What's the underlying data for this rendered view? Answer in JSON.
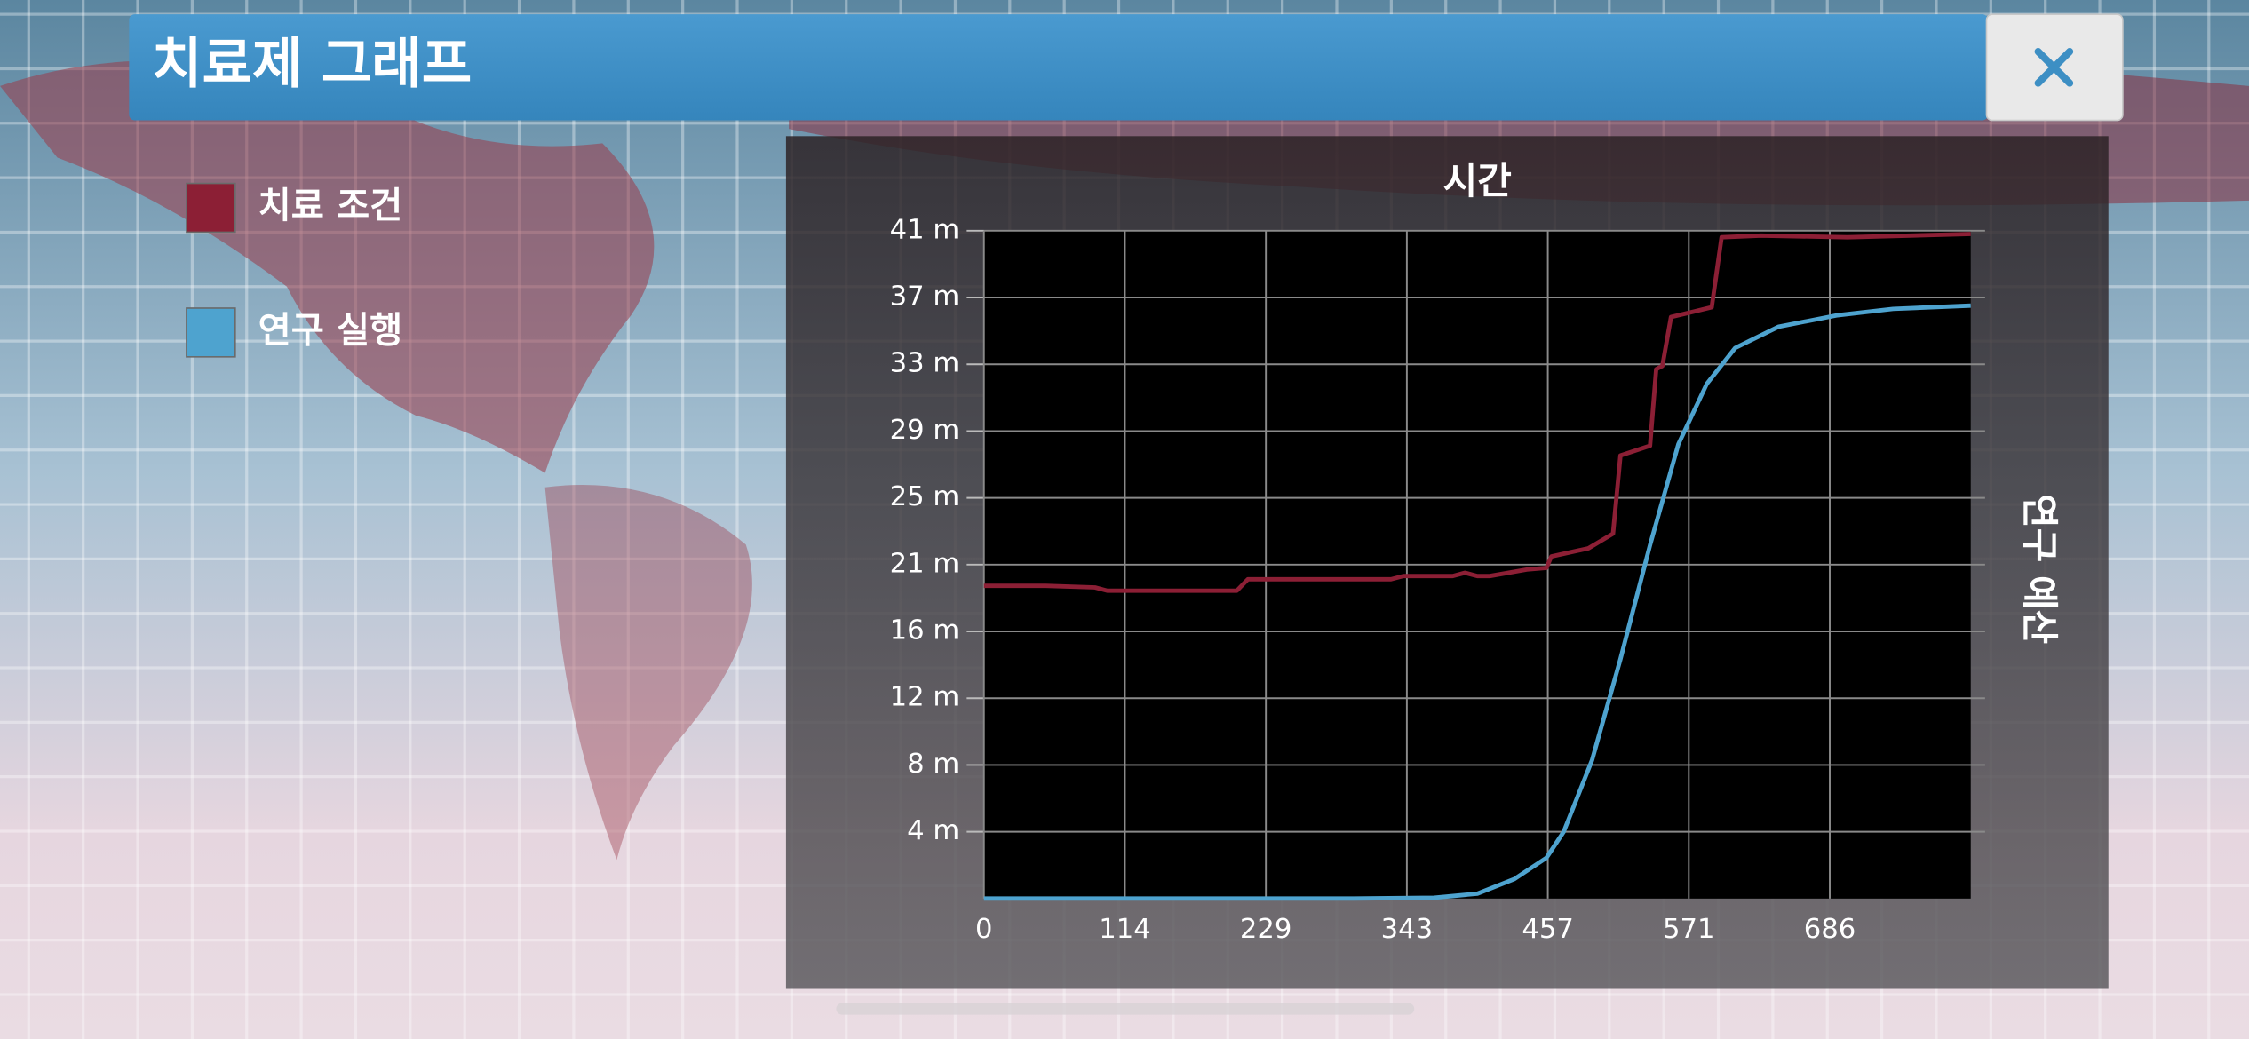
{
  "header": {
    "title": "치료제 그래프"
  },
  "chart_data": {
    "type": "line",
    "x_label": "시간",
    "y_label": "연구 예산",
    "xlim": [
      0,
      800
    ],
    "xticks": [
      0,
      {
        "value": 114.29,
        "label": "114"
      },
      {
        "value": 228.57,
        "label": "229"
      },
      {
        "value": 342.86,
        "label": "343"
      },
      {
        "value": 457.14,
        "label": "457"
      },
      {
        "value": 571.43,
        "label": "571"
      },
      {
        "value": 685.71,
        "label": "686"
      }
    ],
    "ylim": [
      0,
      41
    ],
    "yticks": [
      {
        "value": 4.1,
        "label": "4 m"
      },
      {
        "value": 8.2,
        "label": "8 m"
      },
      {
        "value": 12.3,
        "label": "12 m"
      },
      {
        "value": 16.4,
        "label": "16 m"
      },
      {
        "value": 20.5,
        "label": "21 m"
      },
      {
        "value": 24.6,
        "label": "25 m"
      },
      {
        "value": 28.7,
        "label": "29 m"
      },
      {
        "value": 32.8,
        "label": "33 m"
      },
      {
        "value": 36.9,
        "label": "37 m"
      },
      {
        "value": {
          "v": 41
        },
        "label": "41 m"
      }
    ],
    "grid": true,
    "series": [
      {
        "name": "치료 조건",
        "color": "#8c1f35",
        "x": [
          0,
          50,
          90,
          100,
          205,
          214,
          330,
          340,
          380,
          390,
          400,
          410,
          440,
          456,
          460,
          490,
          510,
          516,
          540,
          545,
          550,
          557,
          590,
          598,
          630,
          700,
          800
        ],
        "values": [
          19.2,
          19.2,
          19.1,
          18.9,
          18.9,
          19.6,
          19.6,
          19.8,
          19.8,
          20.0,
          19.8,
          19.8,
          20.2,
          20.3,
          21.0,
          21.5,
          22.4,
          27.2,
          27.8,
          32.5,
          32.7,
          35.7,
          36.3,
          40.6,
          40.7,
          40.6,
          40.8
        ]
      },
      {
        "name": "연구 실행",
        "color": "#4ea3cf",
        "x": [
          0,
          300,
          365,
          400,
          430,
          456,
          470,
          493,
          516,
          540,
          563,
          586,
          609,
          644,
          691,
          737,
          800
        ],
        "values": [
          0,
          0,
          0.05,
          0.3,
          1.2,
          2.5,
          4.1,
          8.5,
          14.7,
          21.7,
          27.9,
          31.6,
          33.8,
          35.1,
          35.8,
          36.2,
          36.4
        ]
      }
    ]
  }
}
